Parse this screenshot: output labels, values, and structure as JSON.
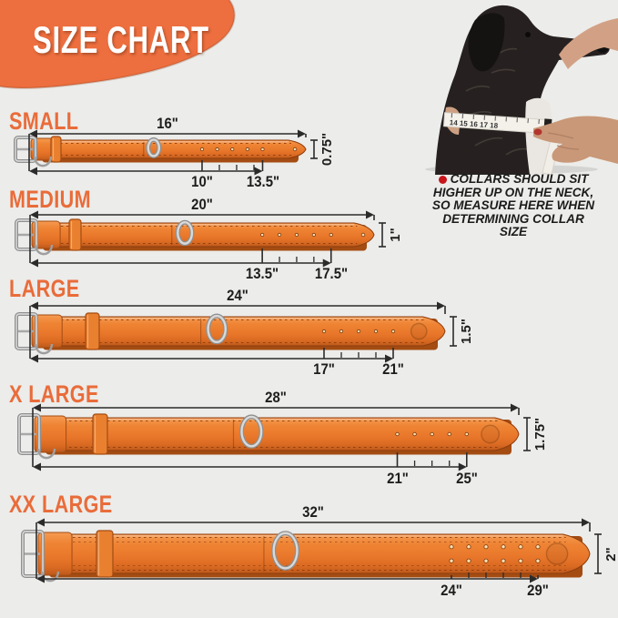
{
  "header": {
    "title": "SIZE CHART"
  },
  "note": {
    "lines": [
      "COLLARS SHOULD SIT",
      "HIGHER UP ON THE NECK,",
      "SO MEASURE HERE WHEN",
      "DETERMINING COLLAR",
      "SIZE"
    ]
  },
  "dog": {
    "tape_numbers": "14  15  16  17  18"
  },
  "sizes": [
    {
      "label": "SMALL",
      "length": "16\"",
      "width": "0.75\"",
      "adjust_min": "10\"",
      "adjust_max": "13.5\""
    },
    {
      "label": "MEDIUM",
      "length": "20\"",
      "width": "1\"",
      "adjust_min": "13.5\"",
      "adjust_max": "17.5\""
    },
    {
      "label": "LARGE",
      "length": "24\"",
      "width": "1.5\"",
      "adjust_min": "17\"",
      "adjust_max": "21\""
    },
    {
      "label": "X LARGE",
      "length": "28\"",
      "width": "1.75\"",
      "adjust_min": "21\"",
      "adjust_max": "25\""
    },
    {
      "label": "XX LARGE",
      "length": "32\"",
      "width": "2\"",
      "adjust_min": "24\"",
      "adjust_max": "29\""
    }
  ],
  "colors": {
    "accent": "#ED6E3E",
    "collar": "#E8762A",
    "background": "#ECECEA",
    "line": "#2B2B2B",
    "note_bullet": "#C8151B"
  }
}
